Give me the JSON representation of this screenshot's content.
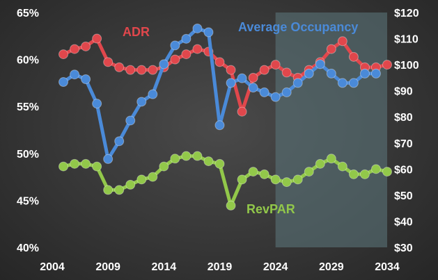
{
  "chart_data": {
    "type": "line",
    "x": [
      2005,
      2006,
      2007,
      2008,
      2009,
      2010,
      2011,
      2012,
      2013,
      2014,
      2015,
      2016,
      2017,
      2018,
      2019,
      2020,
      2021,
      2022,
      2023,
      2024,
      2025,
      2026,
      2027,
      2028,
      2029,
      2030,
      2031,
      2032,
      2033,
      2034
    ],
    "xlim": [
      2004,
      2034
    ],
    "x_ticks": [
      "2004",
      "2009",
      "2014",
      "2019",
      "2024",
      "2029",
      "2034"
    ],
    "y_left": {
      "ylim": [
        40,
        65
      ],
      "ticks": [
        "65%",
        "60%",
        "55%",
        "50%",
        "45%",
        "40%"
      ]
    },
    "y_right": {
      "ylim": [
        30,
        120
      ],
      "ticks": [
        "$120",
        "$110",
        "$100",
        "$90",
        "$80",
        "$70",
        "$60",
        "$50",
        "$40",
        "$30"
      ]
    },
    "forecast_start": 2024,
    "series": [
      {
        "name": "ADR",
        "axis": "right",
        "color": "#e0474c",
        "values": [
          104,
          106,
          107,
          110,
          101,
          99,
          98,
          98,
          98,
          99,
          102,
          104,
          106,
          105,
          101,
          98,
          82,
          95,
          98,
          100,
          97,
          95,
          98,
          101,
          106,
          109,
          103,
          99,
          99,
          100
        ]
      },
      {
        "name": "Average Occupancy",
        "axis": "left",
        "color": "#4a8ad8",
        "values": [
          57.6,
          58.4,
          57.9,
          55.3,
          49.4,
          51.3,
          53.5,
          55.5,
          56.3,
          59.5,
          61.5,
          62.2,
          63.3,
          62.9,
          53.0,
          57.5,
          58.0,
          57.0,
          56.5,
          56.0,
          56.5,
          57.5,
          58.5,
          59.5,
          58.5,
          57.5,
          57.5,
          58.5,
          58.5,
          null
        ]
      },
      {
        "name": "RevPAR",
        "axis": "right",
        "color": "#92c84a",
        "values": [
          61,
          62,
          62,
          61,
          52,
          52,
          54,
          56,
          57,
          61,
          64,
          65,
          65,
          63,
          62,
          46,
          56,
          59,
          58,
          56,
          55,
          56,
          59,
          62,
          64,
          61,
          58,
          58,
          60,
          59
        ]
      }
    ]
  }
}
